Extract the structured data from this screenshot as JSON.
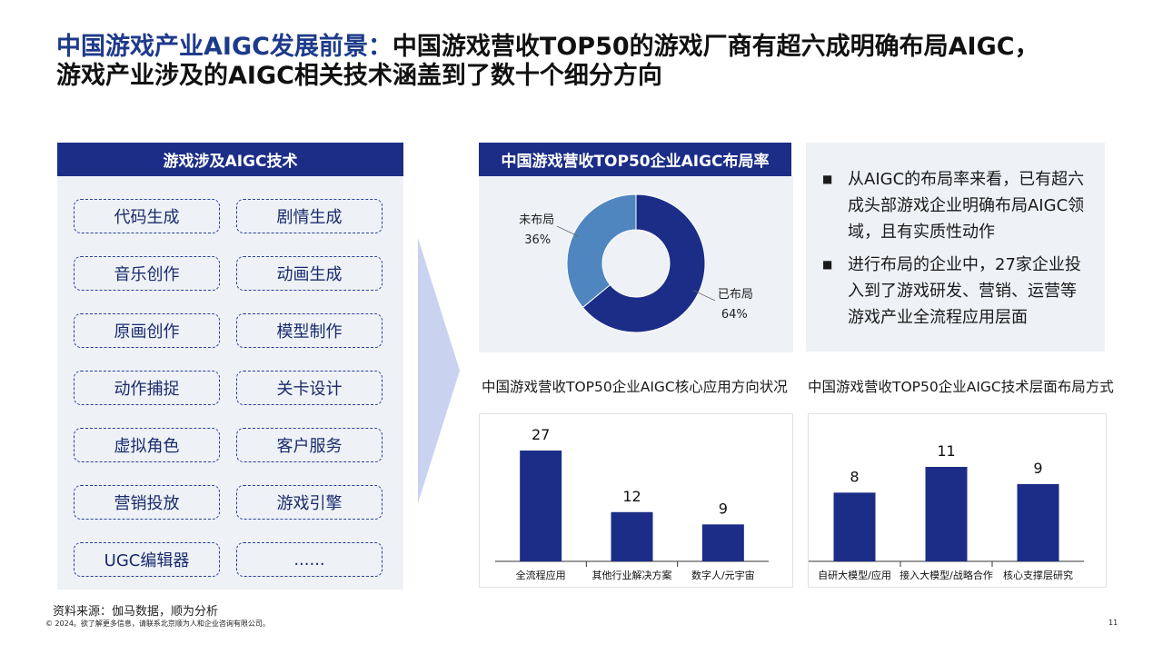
{
  "title": {
    "accent": "中国游戏产业AIGC发展前景：",
    "line1": "中国游戏营收TOP50的游戏厂商有超六成明确布局AIGC，",
    "line2": "游戏产业涉及的AIGC相关技术涵盖到了数十个细分方向"
  },
  "tech_panel": {
    "header": "游戏涉及AIGC技术",
    "items": [
      "代码生成",
      "剧情生成",
      "音乐创作",
      "动画生成",
      "原画创作",
      "模型制作",
      "动作捕捉",
      "关卡设计",
      "虚拟角色",
      "客户服务",
      "营销投放",
      "游戏引擎",
      "UGC编辑器",
      "......"
    ]
  },
  "notes": [
    "从AIGC的布局率来看，已有超六成头部游戏企业明确布局AIGC领域，且有实质性动作",
    "进行布局的企业中，27家企业投入到了游戏研发、营销、运营等游戏产业全流程应用层面"
  ],
  "bullet_glyph": "■",
  "chart_data": [
    {
      "type": "pie",
      "title": "中国游戏营收TOP50企业AIGC布局率",
      "slices": [
        {
          "label": "已布局",
          "value": 64,
          "value_label": "64%",
          "color": "#1c2d87"
        },
        {
          "label": "未布局",
          "value": 36,
          "value_label": "36%",
          "color": "#4f86bf"
        }
      ]
    },
    {
      "type": "bar",
      "title": "中国游戏营收TOP50企业AIGC核心应用方向状况",
      "categories": [
        "全流程应用",
        "其他行业解决方案",
        "数字人/元宇宙"
      ],
      "values": [
        27,
        12,
        9
      ],
      "ylim": [
        0,
        27
      ],
      "color": "#1c2d87"
    },
    {
      "type": "bar",
      "title": "中国游戏营收TOP50企业AIGC技术层面布局方式",
      "categories": [
        "自研大模型/应用",
        "接入大模型/战略合作",
        "核心支撑层研究"
      ],
      "values": [
        8,
        11,
        9
      ],
      "ylim": [
        0,
        11
      ],
      "color": "#1c2d87"
    }
  ],
  "footer": {
    "source": "资料来源：伽马数据，顺为分析",
    "copyright": "© 2024。欲了解更多信息，请联系北京顺为人和企业咨询有限公司。",
    "page": "11"
  }
}
